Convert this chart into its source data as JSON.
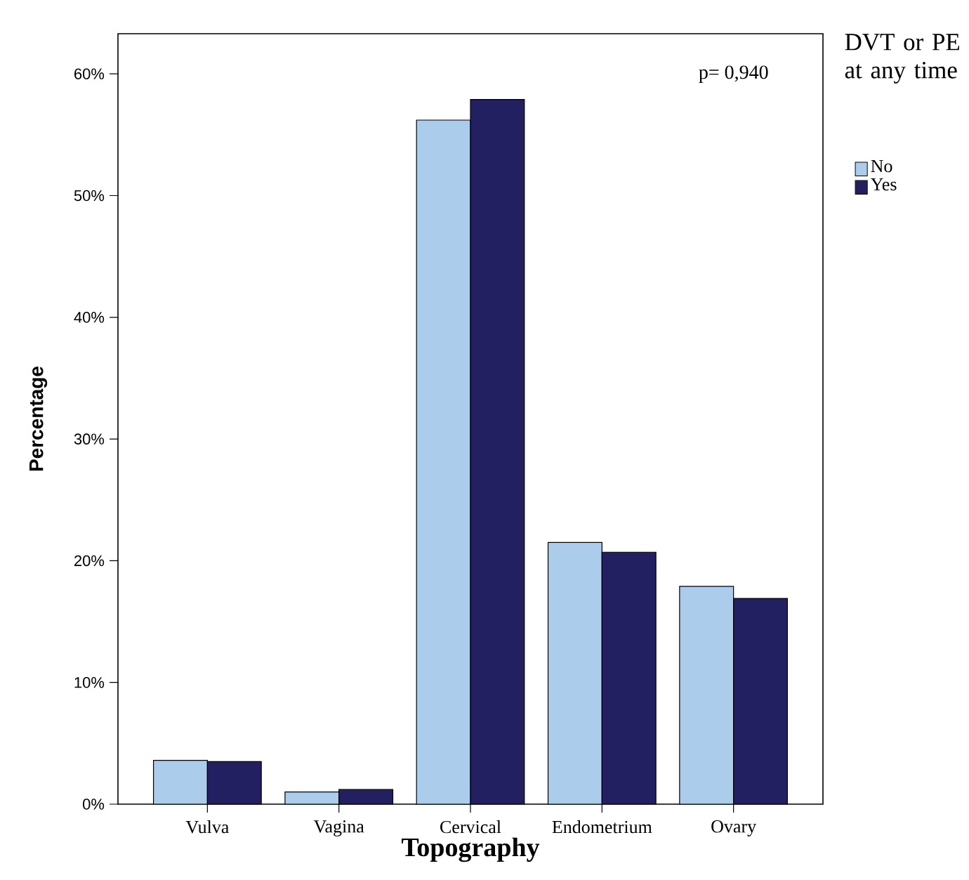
{
  "chart_data": {
    "type": "bar",
    "xlabel": "Topography",
    "ylabel": "Percentage",
    "legend_title": "DVT or PE at any time",
    "legend": "top right",
    "grid": false,
    "categories": [
      "Vulva",
      "Vagina",
      "Cervical",
      "Endometrium",
      "Ovary"
    ],
    "series": [
      {
        "name": "No",
        "color": "#abcdeb",
        "values": [
          3.6,
          1.0,
          56.2,
          21.5,
          17.9
        ]
      },
      {
        "name": "Yes",
        "color": "#232062",
        "values": [
          3.5,
          1.2,
          57.9,
          20.7,
          16.9
        ]
      }
    ],
    "ylim": [
      0,
      63.3
    ],
    "yticks": [
      {
        "value": 0,
        "label": "0%"
      },
      {
        "value": 10,
        "label": "10%"
      },
      {
        "value": 20,
        "label": "20%"
      },
      {
        "value": 30,
        "label": "30%"
      },
      {
        "value": 40,
        "label": "40%"
      },
      {
        "value": 50,
        "label": "50%"
      },
      {
        "value": 60,
        "label": "60%"
      }
    ],
    "annotations": [
      "p= 0,940"
    ]
  }
}
